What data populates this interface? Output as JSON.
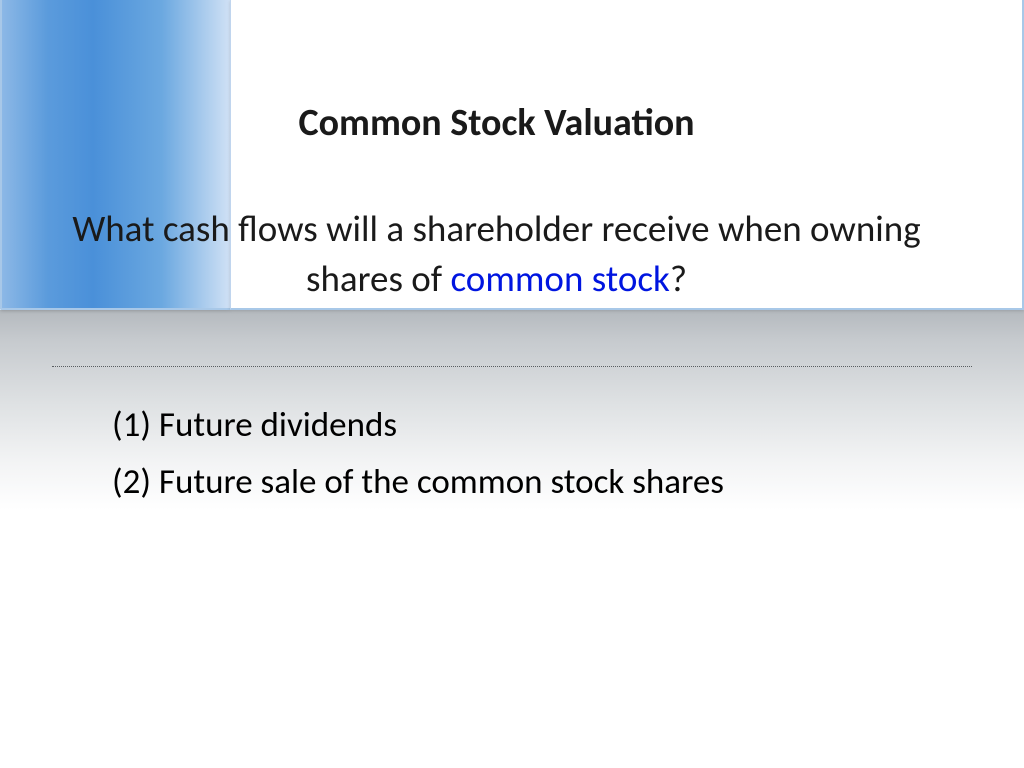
{
  "slide": {
    "title": "Common Stock Valuation",
    "question_pre": "What cash flows will a shareholder receive when owning shares of ",
    "question_highlight": "common stock",
    "question_post": "?",
    "answers": [
      "(1)   Future dividends",
      "(2)   Future sale of the common stock shares"
    ]
  },
  "style": {
    "sidebar_gradient_start": "#8cb8e6",
    "sidebar_gradient_end": "#d0e1f5",
    "card_border": "#a8c8e8",
    "title_color": "#1a1a1a",
    "title_fontsize": 38,
    "title_fontweight": 700,
    "question_color": "#1a1a1a",
    "question_fontsize": 37,
    "highlight_color": "#0015e0",
    "answer_color": "#000000",
    "answer_fontsize": 35,
    "reflection_top": "#b4b9be",
    "reflection_bottom": "#ffffff",
    "background": "#ffffff"
  }
}
